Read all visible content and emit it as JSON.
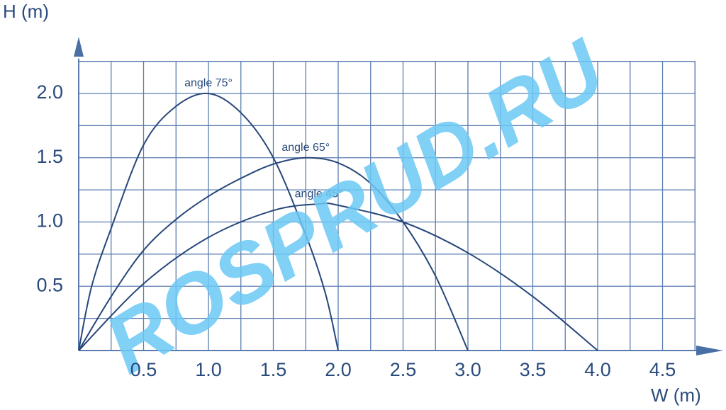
{
  "chart_data": {
    "type": "line",
    "y_label": "H (m)",
    "x_label": "W (m)",
    "watermark": "ROSPRUD.RU",
    "xlim": [
      0,
      4.75
    ],
    "ylim": [
      0,
      2.25
    ],
    "xticks": [
      0.5,
      {
        "value": 1,
        "label": "1.0"
      },
      1.5,
      {
        "value": 2,
        "label": "2.0"
      },
      2.5,
      {
        "value": 3,
        "label": "3.0"
      },
      3.5,
      {
        "value": 4,
        "label": "4.0"
      },
      4.5
    ],
    "yticks": [
      0.5,
      {
        "value": 1,
        "label": "1.0"
      },
      1.5,
      {
        "value": 2,
        "label": "2.0"
      }
    ],
    "grid": true,
    "grid_color": "#5a7db0",
    "series": [
      {
        "name": "angle 75°",
        "color": "#27477a",
        "x": [
          0,
          0.1,
          0.25,
          0.5,
          0.75,
          1.0,
          1.25,
          1.5,
          1.75,
          1.9,
          2.0
        ],
        "values": [
          0,
          0.5,
          0.95,
          1.6,
          1.9,
          2.0,
          1.85,
          1.5,
          0.9,
          0.45,
          0
        ]
      },
      {
        "name": "angle 65°",
        "color": "#27477a",
        "x": [
          0,
          0.25,
          0.5,
          0.75,
          1.0,
          1.25,
          1.5,
          1.75,
          2.0,
          2.25,
          2.5,
          2.75,
          3.0
        ],
        "values": [
          0,
          0.42,
          0.78,
          1.02,
          1.2,
          1.34,
          1.45,
          1.5,
          1.46,
          1.3,
          1.0,
          0.58,
          0
        ]
      },
      {
        "name": "angle 45°",
        "color": "#27477a",
        "x": [
          0,
          0.5,
          1.0,
          1.5,
          1.85,
          2.0,
          2.5,
          3.0,
          3.5,
          4.0
        ],
        "values": [
          0,
          0.52,
          0.88,
          1.09,
          1.14,
          1.13,
          1.0,
          0.76,
          0.42,
          0
        ]
      }
    ]
  }
}
